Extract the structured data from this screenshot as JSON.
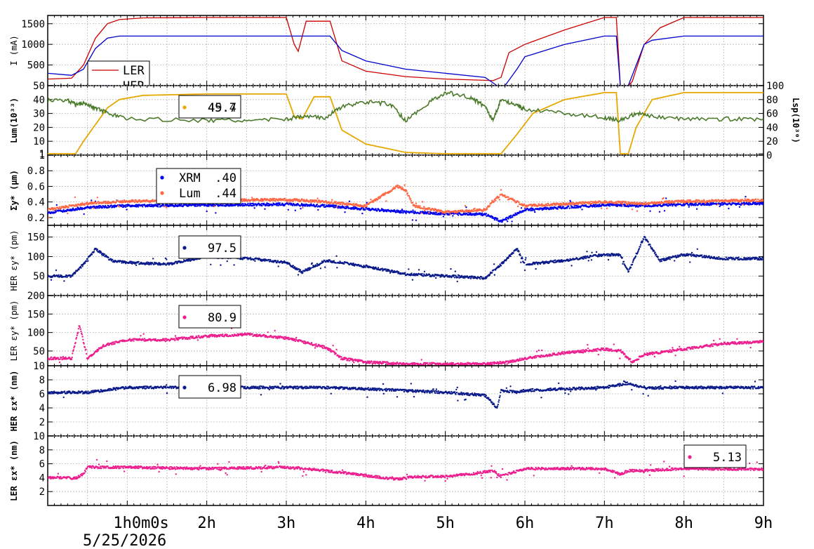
{
  "chart_data": [
    {
      "type": "line",
      "ylabel": "I (mA)",
      "ylim": [
        0,
        1700
      ],
      "yticks": [
        "500",
        "1000",
        "1500"
      ],
      "legend": [
        {
          "name": "LER",
          "color": "#cc0000"
        },
        {
          "name": "HER",
          "color": "#0000cc"
        }
      ],
      "series": [
        {
          "name": "LER",
          "color": "#cc0000",
          "x": [
            0.0,
            0.3,
            0.45,
            0.6,
            0.75,
            0.9,
            1.2,
            2.0,
            3.0,
            3.1,
            3.15,
            3.25,
            3.55,
            3.7,
            4.0,
            4.5,
            5.0,
            5.5,
            5.6,
            5.7,
            5.8,
            6.0,
            6.5,
            7.0,
            7.15,
            7.2,
            7.3,
            7.35,
            7.5,
            7.7,
            8.0,
            8.5,
            9.0
          ],
          "y": [
            160,
            180,
            500,
            1150,
            1500,
            1600,
            1640,
            1650,
            1650,
            1000,
            830,
            1560,
            1560,
            600,
            350,
            220,
            160,
            130,
            120,
            200,
            800,
            1000,
            1350,
            1650,
            1650,
            0,
            0,
            100,
            1000,
            1400,
            1650,
            1650,
            1650
          ]
        },
        {
          "name": "HER",
          "color": "#0000cc",
          "x": [
            0.0,
            0.3,
            0.45,
            0.6,
            0.75,
            0.9,
            1.5,
            2.0,
            3.0,
            3.55,
            3.7,
            4.0,
            4.5,
            5.0,
            5.5,
            5.65,
            5.75,
            5.9,
            6.0,
            6.5,
            7.0,
            7.15,
            7.2,
            7.3,
            7.4,
            7.5,
            7.6,
            8.0,
            8.5,
            9.0
          ],
          "y": [
            300,
            250,
            400,
            900,
            1150,
            1200,
            1200,
            1200,
            1200,
            1200,
            850,
            600,
            400,
            300,
            200,
            0,
            0,
            400,
            700,
            1000,
            1200,
            1200,
            0,
            0,
            500,
            1000,
            1100,
            1200,
            1200,
            1200
          ]
        }
      ]
    },
    {
      "type": "line",
      "ylabel": "Lum(10³³)",
      "y2label": "Lsp(10³⁰)",
      "ylim": [
        0,
        50
      ],
      "yticks": [
        "1",
        "10",
        "20",
        "30",
        "40",
        "50"
      ],
      "y2lim": [
        0,
        100
      ],
      "y2ticks": [
        "0",
        "20",
        "40",
        "60",
        "80",
        "100"
      ],
      "legend": [
        {
          "name": "",
          "value": "45.7",
          "overlap": "49.4",
          "color": "#e6a800"
        }
      ],
      "series": [
        {
          "name": "",
          "color": "#e6a800",
          "x": [
            0.0,
            0.35,
            0.45,
            0.6,
            0.75,
            0.9,
            1.2,
            2.0,
            3.0,
            3.1,
            3.2,
            3.35,
            3.55,
            3.7,
            4.0,
            4.5,
            5.0,
            5.5,
            5.7,
            5.9,
            6.1,
            6.5,
            7.0,
            7.15,
            7.2,
            7.3,
            7.4,
            7.6,
            8.0,
            8.5,
            9.0
          ],
          "y": [
            1,
            1,
            10,
            22,
            34,
            40,
            43,
            44,
            44,
            28,
            26,
            42,
            42,
            18,
            8,
            2,
            1,
            1,
            1,
            15,
            30,
            40,
            45,
            45,
            1,
            1,
            20,
            40,
            45,
            45,
            45
          ]
        },
        {
          "name": "",
          "color": "#4a7a2a",
          "x": [
            0.0,
            0.25,
            0.35,
            0.45,
            0.6,
            0.75,
            1.0,
            2.0,
            2.5,
            3.0,
            3.2,
            3.5,
            3.7,
            4.0,
            4.3,
            4.5,
            4.8,
            5.0,
            5.3,
            5.5,
            5.6,
            5.7,
            5.9,
            6.0,
            6.5,
            7.0,
            7.2,
            7.4,
            7.6,
            8.0,
            8.5,
            9.0
          ],
          "y": [
            39,
            40,
            36,
            38,
            34,
            30,
            26,
            25,
            25,
            26,
            28,
            27,
            35,
            38,
            37,
            25,
            38,
            45,
            42,
            35,
            25,
            40,
            36,
            33,
            30,
            27,
            25,
            30,
            28,
            26,
            26,
            26
          ]
        }
      ]
    },
    {
      "type": "scatter",
      "ylabel": "Σy* (μm)",
      "ylim": [
        0.1,
        1.0
      ],
      "yticks": [
        "0.2",
        "0.4",
        "0.6",
        "0.8",
        "1"
      ],
      "legend": [
        {
          "name": "XRM",
          "value": ".40",
          "color": "#0000ee"
        },
        {
          "name": "Lum",
          "value": ".44",
          "color": "#ff6644"
        }
      ],
      "series": [
        {
          "name": "XRM",
          "color": "#0000ee",
          "x": [
            0.0,
            0.5,
            1.0,
            2.0,
            3.0,
            3.5,
            4.0,
            4.5,
            5.0,
            5.5,
            5.7,
            6.0,
            7.0,
            7.5,
            8.0,
            9.0
          ],
          "y": [
            0.26,
            0.33,
            0.35,
            0.36,
            0.37,
            0.35,
            0.31,
            0.27,
            0.25,
            0.24,
            0.15,
            0.3,
            0.36,
            0.35,
            0.37,
            0.38
          ]
        },
        {
          "name": "Lum",
          "color": "#ff6644",
          "x": [
            0.0,
            0.5,
            1.0,
            2.0,
            3.0,
            3.5,
            4.0,
            4.4,
            4.5,
            4.6,
            5.0,
            5.5,
            5.7,
            6.0,
            7.0,
            7.5,
            8.0,
            9.0
          ],
          "y": [
            0.3,
            0.38,
            0.41,
            0.42,
            0.43,
            0.4,
            0.35,
            0.6,
            0.55,
            0.35,
            0.27,
            0.3,
            0.5,
            0.35,
            0.4,
            0.38,
            0.41,
            0.42
          ]
        }
      ]
    },
    {
      "type": "scatter",
      "ylabel": "HER εy* (pm)",
      "ylim": [
        0,
        180
      ],
      "yticks": [
        "50",
        "100",
        "150"
      ],
      "legend": [
        {
          "name": "",
          "value": "97.5",
          "color": "#0a1a8a"
        }
      ],
      "series": [
        {
          "name": "",
          "color": "#0a1a8a",
          "x": [
            0.0,
            0.3,
            0.45,
            0.6,
            0.8,
            1.0,
            1.5,
            2.0,
            2.5,
            3.0,
            3.2,
            3.5,
            4.0,
            4.5,
            5.0,
            5.5,
            5.7,
            5.9,
            6.0,
            6.5,
            7.0,
            7.2,
            7.3,
            7.5,
            7.7,
            8.0,
            8.5,
            9.0
          ],
          "y": [
            50,
            50,
            80,
            120,
            90,
            85,
            80,
            100,
            95,
            85,
            60,
            90,
            75,
            55,
            50,
            45,
            80,
            120,
            80,
            90,
            105,
            105,
            60,
            150,
            90,
            105,
            95,
            95
          ]
        }
      ]
    },
    {
      "type": "scatter",
      "ylabel": "LER εy* (pm)",
      "ylim": [
        10,
        200
      ],
      "yticks": [
        "10",
        "50",
        "100",
        "150",
        "200"
      ],
      "legend": [
        {
          "name": "",
          "value": "80.9",
          "color": "#ee1e8e"
        }
      ],
      "series": [
        {
          "name": "",
          "color": "#ee1e8e",
          "x": [
            0.0,
            0.3,
            0.4,
            0.5,
            0.7,
            1.0,
            1.5,
            2.0,
            2.5,
            3.0,
            3.5,
            3.7,
            4.0,
            4.5,
            5.0,
            5.5,
            5.8,
            6.0,
            6.5,
            7.0,
            7.2,
            7.35,
            7.5,
            8.0,
            8.5,
            9.0
          ],
          "y": [
            30,
            30,
            120,
            30,
            65,
            80,
            80,
            90,
            95,
            85,
            60,
            30,
            20,
            15,
            15,
            15,
            20,
            30,
            45,
            55,
            50,
            20,
            40,
            55,
            70,
            75
          ]
        }
      ]
    },
    {
      "type": "scatter",
      "ylabel": "HER εx* (nm)",
      "ylim": [
        0,
        10
      ],
      "yticks": [
        "2",
        "4",
        "6",
        "8"
      ],
      "legend": [
        {
          "name": "",
          "value": "6.98",
          "color": "#0a1a8a"
        }
      ],
      "series": [
        {
          "name": "",
          "color": "#0a1a8a",
          "x": [
            0.0,
            0.5,
            1.0,
            2.0,
            3.0,
            3.5,
            4.0,
            5.0,
            5.5,
            5.65,
            5.7,
            5.9,
            6.0,
            7.0,
            7.3,
            7.5,
            8.0,
            9.0
          ],
          "y": [
            6.2,
            6.2,
            6.9,
            6.9,
            6.9,
            6.9,
            6.7,
            6.2,
            5.8,
            4.0,
            6.5,
            6.2,
            6.5,
            6.9,
            7.5,
            6.8,
            6.9,
            6.9
          ]
        }
      ]
    },
    {
      "type": "scatter",
      "ylabel": "LER εx* (nm)",
      "ylim": [
        0,
        10
      ],
      "yticks": [
        "2",
        "4",
        "6",
        "8",
        "10"
      ],
      "legend": [
        {
          "name": "",
          "value": "5.13",
          "color": "#ee1e8e"
        }
      ],
      "series": [
        {
          "name": "",
          "color": "#ee1e8e",
          "x": [
            0.0,
            0.2,
            0.35,
            0.45,
            0.5,
            1.0,
            2.0,
            3.0,
            3.5,
            4.0,
            4.2,
            4.4,
            4.6,
            5.0,
            5.3,
            5.6,
            5.7,
            6.0,
            6.5,
            7.0,
            7.2,
            7.3,
            7.5,
            8.0,
            9.0
          ],
          "y": [
            4.0,
            4.0,
            3.9,
            4.5,
            5.5,
            5.5,
            5.3,
            5.5,
            5.0,
            4.3,
            4.0,
            3.8,
            4.1,
            4.2,
            4.5,
            5.0,
            4.2,
            5.3,
            5.3,
            5.3,
            4.5,
            5.0,
            5.0,
            5.3,
            5.2
          ]
        }
      ]
    }
  ],
  "xaxis": {
    "xlim": [
      0,
      9
    ],
    "ticks": [
      {
        "x": 1,
        "label": "1h0m0s"
      },
      {
        "x": 2,
        "label": "2h"
      },
      {
        "x": 3,
        "label": "3h"
      },
      {
        "x": 4,
        "label": "4h"
      },
      {
        "x": 5,
        "label": "5h"
      },
      {
        "x": 6,
        "label": "6h"
      },
      {
        "x": 7,
        "label": "7h"
      },
      {
        "x": 8,
        "label": "8h"
      },
      {
        "x": 9,
        "label": "9h"
      }
    ],
    "date": "5/25/2026"
  }
}
